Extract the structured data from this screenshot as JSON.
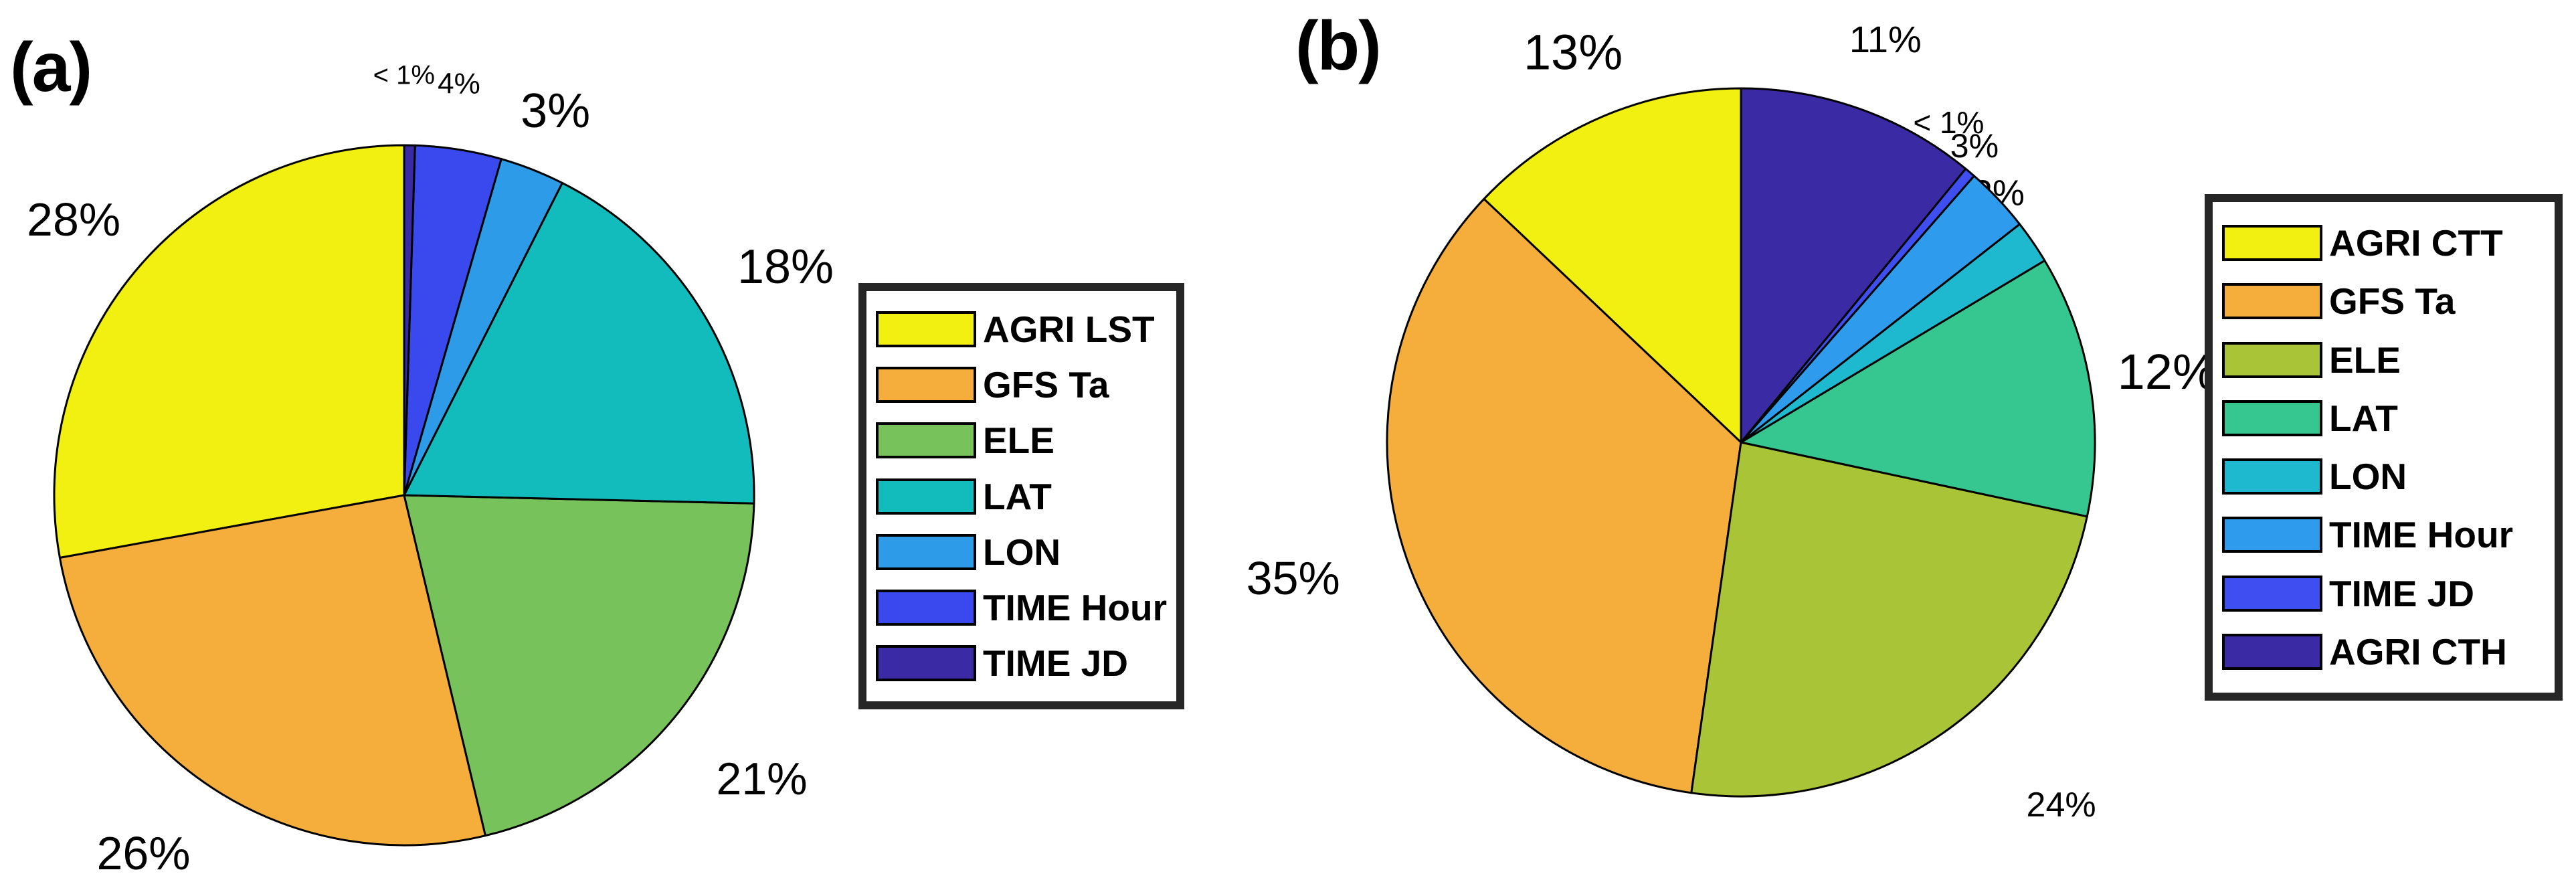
{
  "figure": {
    "background": "#ffffff",
    "panel_tags": [
      {
        "label": "(a)"
      },
      {
        "label": "(b)"
      }
    ]
  },
  "chart_data": [
    {
      "type": "pie",
      "title": "(a)",
      "start_angle_deg": 90,
      "direction": "counterclockwise",
      "legend_position": "right",
      "slices": [
        {
          "label": "AGRI LST",
          "value": 28,
          "display": "28%",
          "color": "#F2F010"
        },
        {
          "label": "GFS Ta",
          "value": 26,
          "display": "26%",
          "color": "#F5AE3C"
        },
        {
          "label": "ELE",
          "value": 21,
          "display": "21%",
          "color": "#77C25B"
        },
        {
          "label": "LAT",
          "value": 18,
          "display": "18%",
          "color": "#12BCBC"
        },
        {
          "label": "LON",
          "value": 3,
          "display": "3%",
          "color": "#2E9BE8"
        },
        {
          "label": "TIME Hour",
          "value": 4,
          "display": "4%",
          "color": "#3A49EE"
        },
        {
          "label": "TIME JD",
          "value": 0.5,
          "display": "< 1%",
          "color": "#3A2BA4"
        }
      ]
    },
    {
      "type": "pie",
      "title": "(b)",
      "start_angle_deg": 90,
      "direction": "counterclockwise",
      "legend_position": "right",
      "slices": [
        {
          "label": "AGRI CTT",
          "value": 13,
          "display": "13%",
          "color": "#F2F010"
        },
        {
          "label": "GFS Ta",
          "value": 35,
          "display": "35%",
          "color": "#F5AE3C"
        },
        {
          "label": "ELE",
          "value": 24,
          "display": "24%",
          "color": "#A9C437"
        },
        {
          "label": "LAT",
          "value": 12,
          "display": "12%",
          "color": "#35C78F"
        },
        {
          "label": "LON",
          "value": 2,
          "display": "2%",
          "color": "#1FB9CF"
        },
        {
          "label": "TIME Hour",
          "value": 3,
          "display": "3%",
          "color": "#2E9BEC"
        },
        {
          "label": "TIME JD",
          "value": 0.5,
          "display": "< 1%",
          "color": "#3F4EF0"
        },
        {
          "label": "AGRI CTH",
          "value": 11,
          "display": "11%",
          "color": "#3A2BA4"
        }
      ]
    }
  ]
}
